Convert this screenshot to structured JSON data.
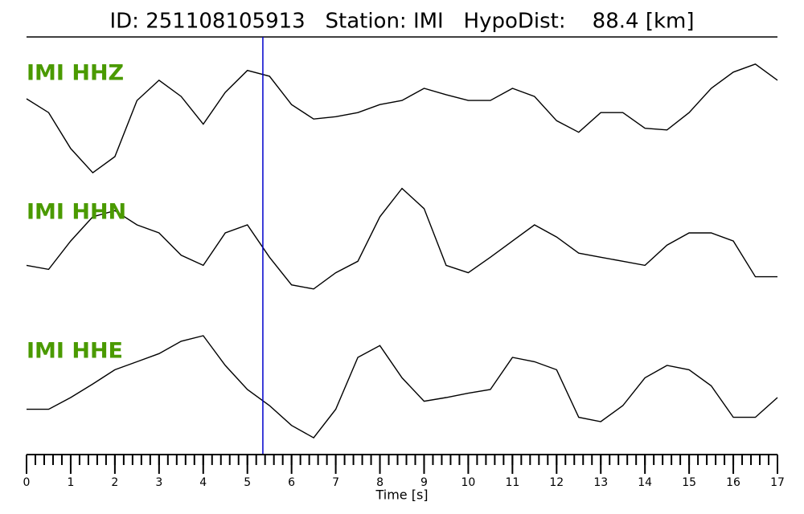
{
  "chart_data": {
    "type": "line",
    "title": "ID: 251108105913   Station: IMI   HypoDist:    88.4 [km]",
    "xlabel": "Time [s]",
    "xlim": [
      0,
      17
    ],
    "xticks": [
      0,
      1,
      2,
      3,
      4,
      5,
      6,
      7,
      8,
      9,
      10,
      11,
      12,
      13,
      14,
      15,
      16,
      17
    ],
    "xminor_step": 0.2,
    "ylim": [
      -1,
      1
    ],
    "label_color": "#4a9a00",
    "pick_time": 5.35,
    "pick_color": "#0000cc",
    "x": [
      0,
      0.5,
      1,
      1.5,
      2,
      2.5,
      3,
      3.5,
      4,
      4.5,
      5,
      5.5,
      6,
      6.5,
      7,
      7.5,
      8,
      8.5,
      9,
      9.5,
      10,
      10.5,
      11,
      11.5,
      12,
      12.5,
      13,
      13.5,
      14,
      14.5,
      15,
      15.5,
      16,
      16.5,
      17
    ],
    "series": [
      {
        "name": "IMI HHZ",
        "color": "#000000",
        "values": [
          0.32,
          0.08,
          -0.54,
          -0.96,
          -0.68,
          0.29,
          0.64,
          0.36,
          -0.12,
          0.43,
          0.81,
          0.71,
          0.22,
          -0.03,
          0.01,
          0.08,
          0.22,
          0.29,
          0.5,
          0.39,
          0.29,
          0.29,
          0.5,
          0.36,
          -0.06,
          -0.26,
          0.08,
          0.08,
          -0.19,
          -0.22,
          0.08,
          0.5,
          0.78,
          0.92,
          0.64
        ]
      },
      {
        "name": "IMI HHN",
        "color": "#000000",
        "values": [
          -0.29,
          -0.35,
          0.07,
          0.43,
          0.52,
          0.31,
          0.19,
          -0.14,
          -0.29,
          0.19,
          0.31,
          -0.17,
          -0.58,
          -0.64,
          -0.4,
          -0.23,
          0.43,
          0.85,
          0.55,
          -0.29,
          -0.4,
          -0.17,
          0.07,
          0.31,
          0.13,
          -0.11,
          -0.17,
          -0.23,
          -0.29,
          0.01,
          0.19,
          0.19,
          0.07,
          -0.46,
          -0.46
        ]
      },
      {
        "name": "IMI HHE",
        "color": "#000000",
        "values": [
          -0.32,
          -0.32,
          -0.13,
          0.09,
          0.32,
          0.45,
          0.58,
          0.78,
          0.87,
          0.39,
          0,
          -0.26,
          -0.58,
          -0.78,
          -0.32,
          0.52,
          0.71,
          0.19,
          -0.19,
          -0.13,
          -0.06,
          0,
          0.52,
          0.45,
          0.32,
          -0.45,
          -0.52,
          -0.26,
          0.19,
          0.39,
          0.32,
          0.06,
          -0.45,
          -0.45,
          -0.13
        ]
      }
    ]
  }
}
